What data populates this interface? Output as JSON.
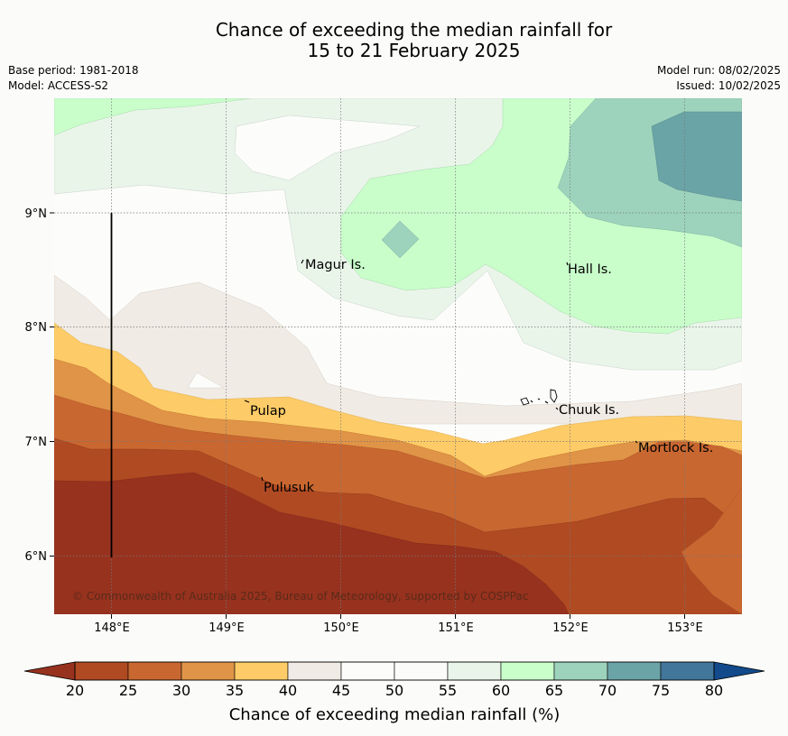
{
  "title": {
    "line1": "Chance of exceeding the median rainfall for",
    "line2": "15 to 21 February 2025"
  },
  "meta": {
    "base_period": "Base period: 1981-2018",
    "model": "Model: ACCESS-S2",
    "model_run": "Model run: 08/02/2025",
    "issued": "Issued: 10/02/2025"
  },
  "map": {
    "lon_range": [
      147.5,
      153.5
    ],
    "lat_range": [
      5.5,
      10.0
    ],
    "lon_ticks": [
      "148°E",
      "149°E",
      "150°E",
      "151°E",
      "152°E",
      "153°E"
    ],
    "lat_ticks": [
      "6°N",
      "7°N",
      "8°N",
      "9°N"
    ],
    "grid": true,
    "places": [
      "Magur Is.",
      "Hall Is.",
      "Pulap",
      "Chuuk Is.",
      "Mortlock Is.",
      "Pulusuk"
    ],
    "copyright": "© Commonwealth of Australia 2025, Bureau of Meteorology, supported by COSPPac"
  },
  "legend": {
    "title": "Chance of exceeding median rainfall (%)",
    "ticks": [
      "20",
      "25",
      "30",
      "35",
      "40",
      "45",
      "50",
      "55",
      "60",
      "65",
      "70",
      "75",
      "80"
    ],
    "colors": {
      "below_20": "#97321f",
      "20_25": "#b04a22",
      "25_30": "#c96731",
      "30_35": "#e09447",
      "35_40": "#fdcb67",
      "40_45": "#f0ebe4",
      "45_50": "#fcfdfb",
      "50_55": "#fbfcf9",
      "55_60": "#eaf5ea",
      "60_65": "#c9fecb",
      "65_70": "#9dd3bc",
      "70_75": "#6ba4a6",
      "75_80": "#42769b",
      "above_80": "#124a8b"
    }
  }
}
